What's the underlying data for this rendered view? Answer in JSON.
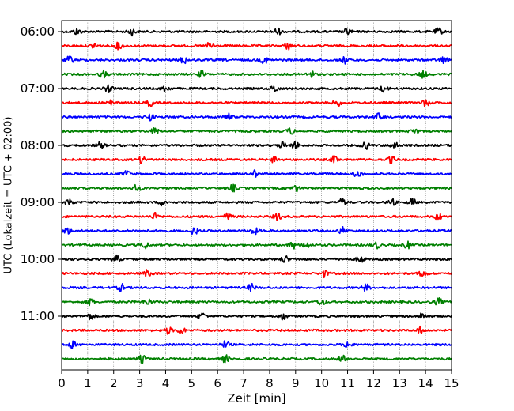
{
  "chart_data": {
    "type": "line",
    "title": "",
    "xlabel": "Zeit  [min]",
    "ylabel": "UTC (Lokalzeit = UTC + 02:00)",
    "xlim": [
      0,
      15
    ],
    "x_ticks": [
      "0",
      "1",
      "2",
      "3",
      "4",
      "5",
      "6",
      "7",
      "8",
      "9",
      "10",
      "11",
      "12",
      "13",
      "14",
      "15"
    ],
    "y_ticks": [
      "06:00",
      "07:00",
      "08:00",
      "09:00",
      "10:00",
      "11:00"
    ],
    "grid": "vertical dotted lines at each minute",
    "traces_per_hour": 4,
    "trace_interval_minutes": 15,
    "traces": [
      {
        "start": "06:00",
        "color": "#000000",
        "events_min": [
          0.6,
          2.7,
          8.3,
          11.0,
          14.5
        ]
      },
      {
        "start": "06:15",
        "color": "#ff0000",
        "events_min": [
          1.3,
          2.2,
          5.7,
          8.7
        ]
      },
      {
        "start": "06:30",
        "color": "#0000ff",
        "events_min": [
          0.3,
          4.7,
          7.8,
          10.9,
          14.7
        ]
      },
      {
        "start": "06:45",
        "color": "#008000",
        "events_min": [
          1.6,
          5.4,
          9.6,
          13.9
        ]
      },
      {
        "start": "07:00",
        "color": "#000000",
        "events_min": [
          1.8,
          4.0,
          8.2,
          12.4
        ]
      },
      {
        "start": "07:15",
        "color": "#ff0000",
        "events_min": [
          1.9,
          3.4,
          10.6,
          14.0
        ]
      },
      {
        "start": "07:30",
        "color": "#0000ff",
        "events_min": [
          3.4,
          6.4,
          12.2
        ]
      },
      {
        "start": "07:45",
        "color": "#008000",
        "events_min": [
          3.6,
          8.8,
          13.6
        ]
      },
      {
        "start": "08:00",
        "color": "#000000",
        "events_min": [
          1.5,
          8.5,
          9.0,
          11.7,
          12.8
        ]
      },
      {
        "start": "08:15",
        "color": "#ff0000",
        "events_min": [
          3.1,
          8.2,
          10.5,
          12.7
        ]
      },
      {
        "start": "08:30",
        "color": "#0000ff",
        "events_min": [
          2.5,
          7.4,
          11.4
        ]
      },
      {
        "start": "08:45",
        "color": "#008000",
        "events_min": [
          2.9,
          6.6,
          9.0
        ]
      },
      {
        "start": "09:00",
        "color": "#000000",
        "events_min": [
          0.3,
          3.9,
          10.8,
          12.7,
          13.5
        ]
      },
      {
        "start": "09:15",
        "color": "#ff0000",
        "events_min": [
          3.6,
          6.4,
          8.3,
          14.5
        ]
      },
      {
        "start": "09:30",
        "color": "#0000ff",
        "events_min": [
          0.2,
          5.1,
          7.4,
          10.8
        ]
      },
      {
        "start": "09:45",
        "color": "#008000",
        "events_min": [
          3.2,
          8.9,
          9.4,
          12.1,
          13.3
        ]
      },
      {
        "start": "10:00",
        "color": "#000000",
        "events_min": [
          2.1,
          8.6,
          11.5
        ]
      },
      {
        "start": "10:15",
        "color": "#ff0000",
        "events_min": [
          3.3,
          10.1,
          13.9
        ]
      },
      {
        "start": "10:30",
        "color": "#0000ff",
        "events_min": [
          2.3,
          7.3,
          11.7
        ]
      },
      {
        "start": "10:45",
        "color": "#008000",
        "events_min": [
          1.1,
          3.3,
          10.0,
          14.5
        ]
      },
      {
        "start": "11:00",
        "color": "#000000",
        "events_min": [
          1.1,
          5.4,
          8.5,
          13.9
        ]
      },
      {
        "start": "11:15",
        "color": "#ff0000",
        "events_min": [
          4.1,
          4.6,
          13.8
        ]
      },
      {
        "start": "11:30",
        "color": "#0000ff",
        "events_min": [
          0.4,
          6.3,
          11.0
        ]
      },
      {
        "start": "11:45",
        "color": "#008000",
        "events_min": [
          3.1,
          6.3,
          10.8
        ]
      }
    ]
  }
}
